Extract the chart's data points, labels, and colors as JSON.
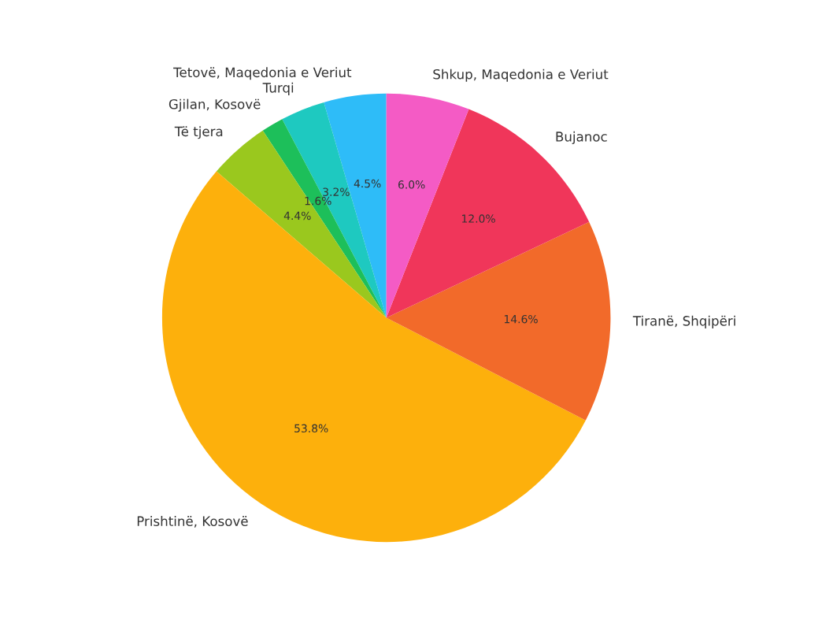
{
  "chart_data": {
    "type": "pie",
    "categories": [
      "Tetovë, Maqedonia e Veriut",
      "Turqi",
      "Gjilan, Kosovë",
      "Të tjera",
      "Prishtinë, Kosovë",
      "Tiranë, Shqipëri",
      "Bujanoc",
      "Shkup, Maqedonia e Veriut"
    ],
    "values": [
      4.5,
      3.2,
      1.6,
      4.4,
      53.8,
      14.6,
      12.0,
      6.0
    ],
    "value_labels": [
      "4.5%",
      "3.2%",
      "1.6%",
      "4.4%",
      "53.8%",
      "14.6%",
      "12.0%",
      "6.0%"
    ],
    "colors": [
      "#2ebcf8",
      "#1ec9c0",
      "#1dbf5a",
      "#9ac81e",
      "#fdb00c",
      "#f26a2a",
      "#f0365a",
      "#f45bc5"
    ]
  }
}
